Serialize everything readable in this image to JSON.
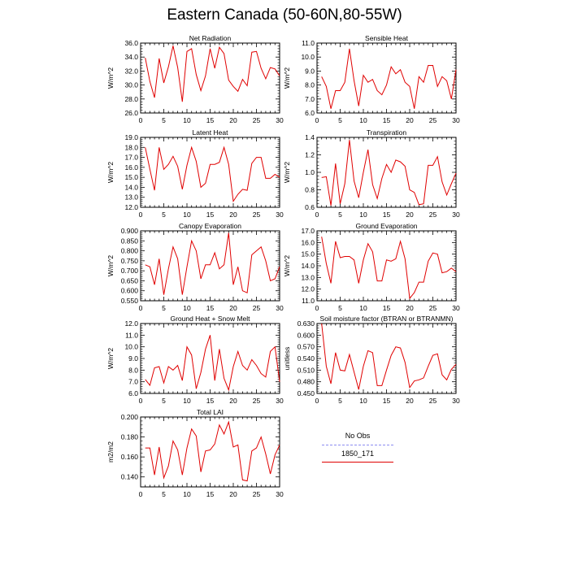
{
  "page": {
    "title": "Eastern Canada (50-60N,80-55W)"
  },
  "legend": {
    "entries": [
      {
        "label": "No Obs",
        "color": "#8c8cf0",
        "style": "dashed"
      },
      {
        "label": "1850_171",
        "color": "#e00000",
        "style": "solid"
      }
    ]
  },
  "chart_data": [
    {
      "type": "line",
      "title": "Net Radiation",
      "ylabel": "W/m^2",
      "xlim": [
        0,
        30
      ],
      "ylim": [
        26.0,
        36.0
      ],
      "xticks": [
        0,
        5,
        10,
        15,
        20,
        25,
        30
      ],
      "yticks": [
        "26.0",
        "28.0",
        "30.0",
        "32.0",
        "34.0",
        "36.0"
      ],
      "series": [
        {
          "color": "#e00000",
          "x": [
            1,
            2,
            3,
            4,
            5,
            6,
            7,
            8,
            9,
            10,
            11,
            12,
            13,
            14,
            15,
            16,
            17,
            18,
            19,
            20,
            21,
            22,
            23,
            24,
            25,
            26,
            27,
            28,
            29,
            30
          ],
          "values": [
            33.9,
            30.5,
            28.2,
            33.8,
            30.3,
            32.6,
            35.6,
            32.5,
            27.6,
            34.8,
            35.2,
            31.5,
            29.2,
            31.3,
            35.2,
            32.4,
            35.4,
            34.5,
            30.7,
            29.8,
            29.1,
            30.8,
            29.9,
            34.7,
            34.8,
            32.4,
            30.9,
            32.5,
            32.3,
            31.3
          ]
        }
      ]
    },
    {
      "type": "line",
      "title": "Sensible Heat",
      "ylabel": "W/m^2",
      "xlim": [
        0,
        30
      ],
      "ylim": [
        6.0,
        11.0
      ],
      "xticks": [
        0,
        5,
        10,
        15,
        20,
        25,
        30
      ],
      "yticks": [
        "6.0",
        "7.0",
        "8.0",
        "9.0",
        "10.0",
        "11.0"
      ],
      "series": [
        {
          "color": "#e00000",
          "x": [
            1,
            2,
            3,
            4,
            5,
            6,
            7,
            8,
            9,
            10,
            11,
            12,
            13,
            14,
            15,
            16,
            17,
            18,
            19,
            20,
            21,
            22,
            23,
            24,
            25,
            26,
            27,
            28,
            29,
            30
          ],
          "values": [
            8.6,
            7.9,
            6.3,
            7.6,
            7.6,
            8.2,
            10.6,
            8.3,
            6.5,
            8.7,
            8.2,
            8.4,
            7.6,
            7.3,
            8.0,
            9.3,
            8.8,
            9.1,
            8.2,
            7.9,
            6.3,
            8.6,
            8.2,
            9.4,
            9.4,
            7.9,
            8.6,
            8.3,
            7.0,
            9.1
          ]
        }
      ]
    },
    {
      "type": "line",
      "title": "Latent Heat",
      "ylabel": "W/m^2",
      "xlim": [
        0,
        30
      ],
      "ylim": [
        12.0,
        19.0
      ],
      "xticks": [
        0,
        5,
        10,
        15,
        20,
        25,
        30
      ],
      "yticks": [
        "12.0",
        "13.0",
        "14.0",
        "15.0",
        "16.0",
        "17.0",
        "18.0",
        "19.0"
      ],
      "series": [
        {
          "color": "#e00000",
          "x": [
            1,
            2,
            3,
            4,
            5,
            6,
            7,
            8,
            9,
            10,
            11,
            12,
            13,
            14,
            15,
            16,
            17,
            18,
            19,
            20,
            21,
            22,
            23,
            24,
            25,
            26,
            27,
            28,
            29,
            30
          ],
          "values": [
            18.0,
            15.8,
            13.7,
            18.0,
            15.8,
            16.3,
            17.1,
            16.1,
            13.8,
            16.2,
            18.0,
            16.6,
            14.0,
            14.4,
            16.3,
            16.3,
            16.5,
            18.0,
            16.3,
            12.6,
            13.3,
            13.8,
            13.7,
            16.4,
            17.0,
            17.0,
            14.9,
            14.9,
            15.3,
            15.0
          ]
        }
      ]
    },
    {
      "type": "line",
      "title": "Transpiration",
      "ylabel": "W/m^2",
      "xlim": [
        0,
        30
      ],
      "ylim": [
        0.6,
        1.4
      ],
      "xticks": [
        0,
        5,
        10,
        15,
        20,
        25,
        30
      ],
      "yticks": [
        "0.6",
        "0.8",
        "1.0",
        "1.2",
        "1.4"
      ],
      "series": [
        {
          "color": "#e00000",
          "x": [
            1,
            2,
            3,
            4,
            5,
            6,
            7,
            8,
            9,
            10,
            11,
            12,
            13,
            14,
            15,
            16,
            17,
            18,
            19,
            20,
            21,
            22,
            23,
            24,
            25,
            26,
            27,
            28,
            29,
            30
          ],
          "values": [
            0.94,
            0.95,
            0.62,
            1.1,
            0.64,
            0.87,
            1.37,
            0.9,
            0.71,
            1.0,
            1.26,
            0.86,
            0.7,
            0.93,
            1.09,
            1.0,
            1.14,
            1.12,
            1.07,
            0.8,
            0.77,
            0.63,
            0.64,
            1.08,
            1.08,
            1.18,
            0.89,
            0.74,
            0.87,
            0.99
          ]
        }
      ]
    },
    {
      "type": "line",
      "title": "Canopy Evaporation",
      "ylabel": "W/m^2",
      "xlim": [
        0,
        30
      ],
      "ylim": [
        0.55,
        0.9
      ],
      "xticks": [
        0,
        5,
        10,
        15,
        20,
        25,
        30
      ],
      "yticks": [
        "0.550",
        "0.600",
        "0.650",
        "0.700",
        "0.750",
        "0.800",
        "0.850",
        "0.900"
      ],
      "series": [
        {
          "color": "#e00000",
          "x": [
            1,
            2,
            3,
            4,
            5,
            6,
            7,
            8,
            9,
            10,
            11,
            12,
            13,
            14,
            15,
            16,
            17,
            18,
            19,
            20,
            21,
            22,
            23,
            24,
            25,
            26,
            27,
            28,
            29,
            30
          ],
          "values": [
            0.73,
            0.72,
            0.63,
            0.76,
            0.58,
            0.71,
            0.82,
            0.76,
            0.58,
            0.72,
            0.85,
            0.8,
            0.66,
            0.73,
            0.73,
            0.79,
            0.71,
            0.73,
            0.89,
            0.63,
            0.72,
            0.6,
            0.59,
            0.78,
            0.8,
            0.82,
            0.75,
            0.65,
            0.66,
            0.72
          ]
        }
      ]
    },
    {
      "type": "line",
      "title": "Ground Evaporation",
      "ylabel": "W/m^2",
      "xlim": [
        0,
        30
      ],
      "ylim": [
        11.0,
        17.0
      ],
      "xticks": [
        0,
        5,
        10,
        15,
        20,
        25,
        30
      ],
      "yticks": [
        "11.0",
        "12.0",
        "13.0",
        "14.0",
        "15.0",
        "16.0",
        "17.0"
      ],
      "series": [
        {
          "color": "#e00000",
          "x": [
            1,
            2,
            3,
            4,
            5,
            6,
            7,
            8,
            9,
            10,
            11,
            12,
            13,
            14,
            15,
            16,
            17,
            18,
            19,
            20,
            21,
            22,
            23,
            24,
            25,
            26,
            27,
            28,
            29,
            30
          ],
          "values": [
            16.5,
            14.2,
            12.5,
            16.1,
            14.7,
            14.8,
            14.8,
            14.5,
            12.5,
            14.5,
            15.9,
            15.2,
            12.7,
            12.7,
            14.5,
            14.4,
            14.6,
            16.1,
            14.6,
            11.2,
            11.7,
            12.6,
            12.6,
            14.4,
            15.1,
            15.0,
            13.4,
            13.5,
            13.8,
            13.5
          ]
        }
      ]
    },
    {
      "type": "line",
      "title": "Ground Heat + Snow Melt",
      "ylabel": "W/m^2",
      "xlim": [
        0,
        30
      ],
      "ylim": [
        6.0,
        12.0
      ],
      "xticks": [
        0,
        5,
        10,
        15,
        20,
        25,
        30
      ],
      "yticks": [
        "6.0",
        "7.0",
        "8.0",
        "9.0",
        "10.0",
        "11.0",
        "12.0"
      ],
      "series": [
        {
          "color": "#e00000",
          "x": [
            1,
            2,
            3,
            4,
            5,
            6,
            7,
            8,
            9,
            10,
            11,
            12,
            13,
            14,
            15,
            16,
            17,
            18,
            19,
            20,
            21,
            22,
            23,
            24,
            25,
            26,
            27,
            28,
            29,
            30
          ],
          "values": [
            7.2,
            6.7,
            8.2,
            8.3,
            6.9,
            8.3,
            8.0,
            8.4,
            7.1,
            10.0,
            9.3,
            6.4,
            7.8,
            9.8,
            11.0,
            7.1,
            9.8,
            7.3,
            6.3,
            8.3,
            9.6,
            8.4,
            8.0,
            8.9,
            8.4,
            7.7,
            7.4,
            9.6,
            10.0,
            7.0
          ]
        }
      ]
    },
    {
      "type": "line",
      "title": "Soil moisture factor (BTRAN or BTRANMN)",
      "ylabel": "unitless",
      "xlim": [
        0,
        30
      ],
      "ylim": [
        0.45,
        0.63
      ],
      "xticks": [
        0,
        5,
        10,
        15,
        20,
        25,
        30
      ],
      "yticks": [
        "0.450",
        "0.480",
        "0.510",
        "0.540",
        "0.570",
        "0.600",
        "0.630"
      ],
      "series": [
        {
          "color": "#e00000",
          "x": [
            1,
            2,
            3,
            4,
            5,
            6,
            7,
            8,
            9,
            10,
            11,
            12,
            13,
            14,
            15,
            16,
            17,
            18,
            19,
            20,
            21,
            22,
            23,
            24,
            25,
            26,
            27,
            28,
            29,
            30
          ],
          "values": [
            0.63,
            0.52,
            0.475,
            0.555,
            0.51,
            0.508,
            0.55,
            0.505,
            0.46,
            0.52,
            0.56,
            0.555,
            0.47,
            0.47,
            0.51,
            0.548,
            0.57,
            0.567,
            0.53,
            0.465,
            0.482,
            0.485,
            0.49,
            0.52,
            0.548,
            0.552,
            0.498,
            0.485,
            0.512,
            0.525
          ]
        }
      ]
    },
    {
      "type": "line",
      "title": "Total LAI",
      "ylabel": "m2/m2",
      "xlim": [
        0,
        30
      ],
      "ylim": [
        0.13,
        0.2
      ],
      "xticks": [
        0,
        5,
        10,
        15,
        20,
        25,
        30
      ],
      "yticks": [
        "0.140",
        "0.160",
        "0.180",
        "0.200"
      ],
      "series": [
        {
          "color": "#e00000",
          "x": [
            1,
            2,
            3,
            4,
            5,
            6,
            7,
            8,
            9,
            10,
            11,
            12,
            13,
            14,
            15,
            16,
            17,
            18,
            19,
            20,
            21,
            22,
            23,
            24,
            25,
            26,
            27,
            28,
            29,
            30
          ],
          "values": [
            0.169,
            0.169,
            0.142,
            0.17,
            0.139,
            0.151,
            0.176,
            0.167,
            0.142,
            0.169,
            0.188,
            0.181,
            0.145,
            0.166,
            0.167,
            0.173,
            0.192,
            0.183,
            0.195,
            0.17,
            0.172,
            0.137,
            0.136,
            0.166,
            0.169,
            0.18,
            0.163,
            0.143,
            0.162,
            0.172
          ]
        }
      ]
    }
  ]
}
